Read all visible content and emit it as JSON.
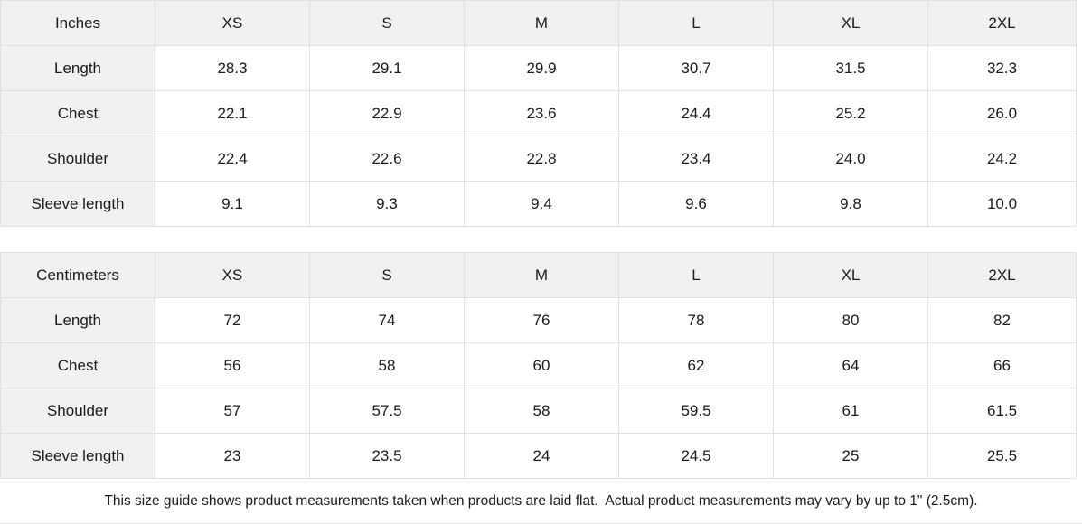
{
  "size_chart": {
    "sections": [
      {
        "unit_label": "Inches",
        "sizes": [
          "XS",
          "S",
          "M",
          "L",
          "XL",
          "2XL"
        ],
        "rows": [
          {
            "label": "Length",
            "values": [
              "28.3",
              "29.1",
              "29.9",
              "30.7",
              "31.5",
              "32.3"
            ]
          },
          {
            "label": "Chest",
            "values": [
              "22.1",
              "22.9",
              "23.6",
              "24.4",
              "25.2",
              "26.0"
            ]
          },
          {
            "label": "Shoulder",
            "values": [
              "22.4",
              "22.6",
              "22.8",
              "23.4",
              "24.0",
              "24.2"
            ]
          },
          {
            "label": "Sleeve length",
            "values": [
              "9.1",
              "9.3",
              "9.4",
              "9.6",
              "9.8",
              "10.0"
            ]
          }
        ]
      },
      {
        "unit_label": "Centimeters",
        "sizes": [
          "XS",
          "S",
          "M",
          "L",
          "XL",
          "2XL"
        ],
        "rows": [
          {
            "label": "Length",
            "values": [
              "72",
              "74",
              "76",
              "78",
              "80",
              "82"
            ]
          },
          {
            "label": "Chest",
            "values": [
              "56",
              "58",
              "60",
              "62",
              "64",
              "66"
            ]
          },
          {
            "label": "Shoulder",
            "values": [
              "57",
              "57.5",
              "58",
              "59.5",
              "61",
              "61.5"
            ]
          },
          {
            "label": "Sleeve length",
            "values": [
              "23",
              "23.5",
              "24",
              "24.5",
              "25",
              "25.5"
            ]
          }
        ]
      }
    ]
  },
  "footer": {
    "note": "This size guide shows product measurements taken when products are laid flat.  Actual product measurements may vary by up to 1\" (2.5cm)."
  },
  "colors": {
    "header_cell_bg": "#f1f1f1",
    "data_cell_bg": "#ffffff",
    "border": "#e0e0e0",
    "text": "#1a1a1a"
  }
}
